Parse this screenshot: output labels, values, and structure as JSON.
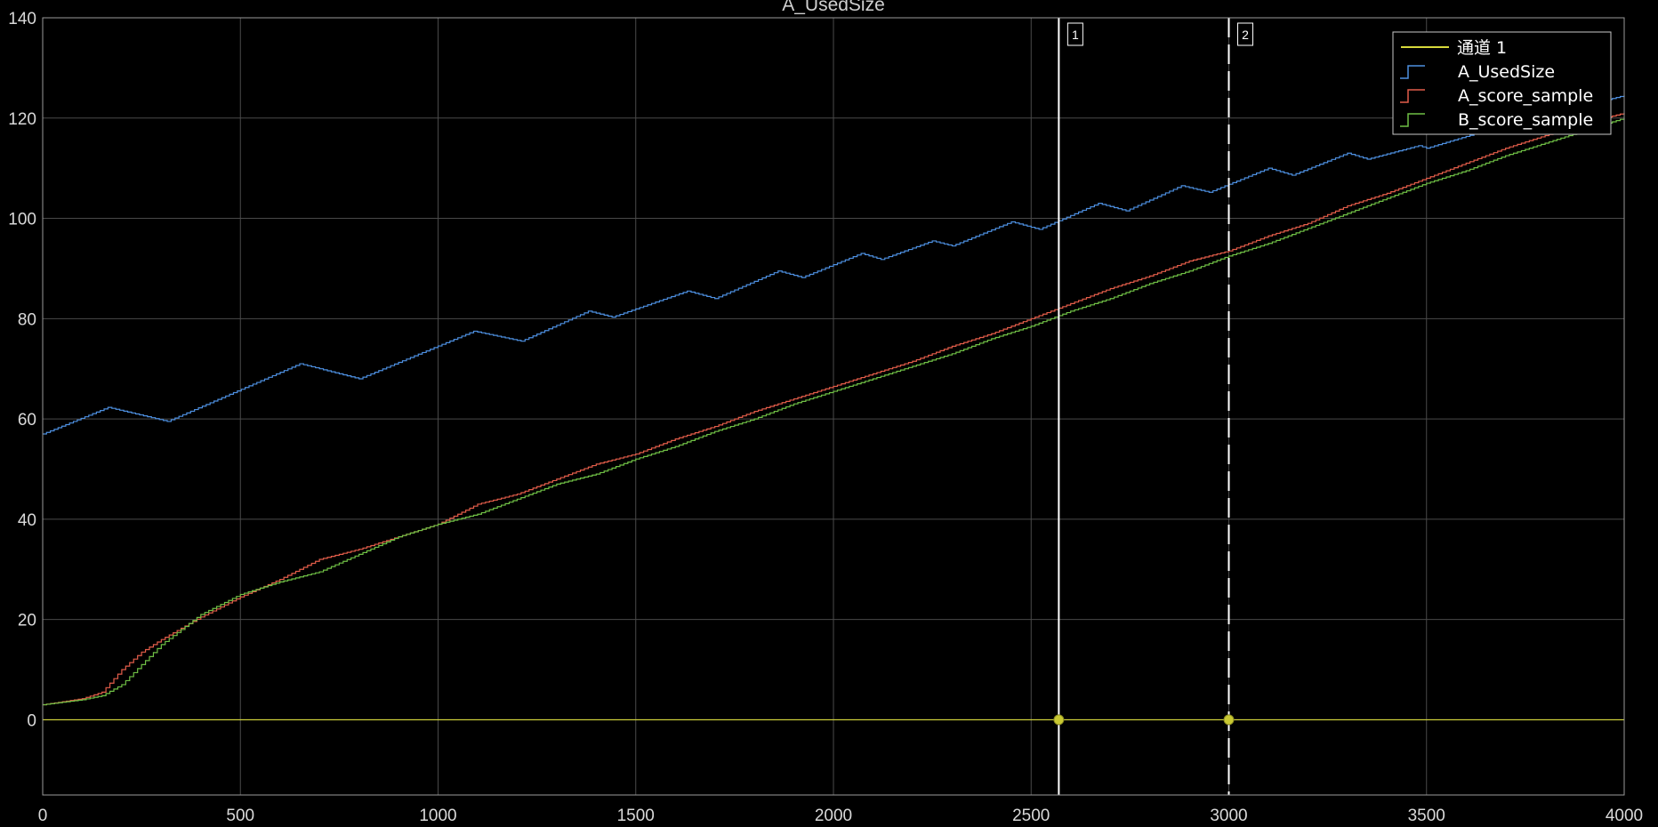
{
  "chart_data": {
    "type": "line",
    "title": "A_UsedSize",
    "xlabel": "",
    "ylabel": "",
    "xlim": [
      0,
      4000
    ],
    "ylim": [
      -15,
      140
    ],
    "x_ticks": [
      0,
      500,
      1000,
      1500,
      2000,
      2500,
      3000,
      3500,
      4000
    ],
    "y_ticks": [
      0,
      20,
      40,
      60,
      80,
      100,
      120,
      140
    ],
    "grid": true,
    "legend_position": "top-right",
    "background": "#000000",
    "series": [
      {
        "name": "通道 1",
        "color": "#d7d93b",
        "style": "line",
        "points": [
          [
            0,
            0
          ],
          [
            4000,
            0
          ]
        ]
      },
      {
        "name": "A_UsedSize",
        "color": "#4d8fe0",
        "style": "stairs",
        "points": [
          [
            0,
            57
          ],
          [
            165,
            62.3
          ],
          [
            315,
            59.5
          ],
          [
            650,
            71
          ],
          [
            800,
            68
          ],
          [
            1090,
            77.5
          ],
          [
            1210,
            75.5
          ],
          [
            1380,
            81.5
          ],
          [
            1440,
            80.3
          ],
          [
            1630,
            85.5
          ],
          [
            1700,
            84
          ],
          [
            1860,
            89.5
          ],
          [
            1920,
            88.2
          ],
          [
            2070,
            93
          ],
          [
            2120,
            91.8
          ],
          [
            2250,
            95.5
          ],
          [
            2300,
            94.5
          ],
          [
            2450,
            99.3
          ],
          [
            2520,
            97.8
          ],
          [
            2670,
            103
          ],
          [
            2740,
            101.5
          ],
          [
            2880,
            106.5
          ],
          [
            2950,
            105.2
          ],
          [
            3100,
            110
          ],
          [
            3160,
            108.6
          ],
          [
            3300,
            113
          ],
          [
            3350,
            111.8
          ],
          [
            3480,
            114.5
          ],
          [
            3500,
            114
          ],
          [
            3650,
            117.5
          ],
          [
            4000,
            124.5
          ]
        ]
      },
      {
        "name": "A_score_sample",
        "color": "#e35d4a",
        "style": "stairs",
        "points": [
          [
            0,
            3
          ],
          [
            100,
            4.2
          ],
          [
            150,
            5.5
          ],
          [
            200,
            10
          ],
          [
            250,
            13.5
          ],
          [
            300,
            16
          ],
          [
            400,
            20.5
          ],
          [
            500,
            24.5
          ],
          [
            600,
            28
          ],
          [
            700,
            32
          ],
          [
            800,
            34
          ],
          [
            900,
            36.5
          ],
          [
            1000,
            39
          ],
          [
            1100,
            43
          ],
          [
            1200,
            45
          ],
          [
            1300,
            48
          ],
          [
            1400,
            51
          ],
          [
            1500,
            53
          ],
          [
            1600,
            56
          ],
          [
            1700,
            58.5
          ],
          [
            1800,
            61.5
          ],
          [
            1900,
            64
          ],
          [
            2000,
            66.5
          ],
          [
            2100,
            69
          ],
          [
            2200,
            71.5
          ],
          [
            2300,
            74.5
          ],
          [
            2400,
            77
          ],
          [
            2500,
            80
          ],
          [
            2600,
            83
          ],
          [
            2700,
            86
          ],
          [
            2800,
            88.5
          ],
          [
            2900,
            91.5
          ],
          [
            3000,
            93.5
          ],
          [
            3100,
            96.5
          ],
          [
            3200,
            99
          ],
          [
            3300,
            102.5
          ],
          [
            3400,
            105
          ],
          [
            3500,
            108
          ],
          [
            3600,
            111
          ],
          [
            3700,
            114
          ],
          [
            3800,
            116.5
          ],
          [
            3900,
            119
          ],
          [
            4000,
            121
          ]
        ]
      },
      {
        "name": "B_score_sample",
        "color": "#6fbf45",
        "style": "stairs",
        "points": [
          [
            0,
            3
          ],
          [
            100,
            4
          ],
          [
            150,
            4.8
          ],
          [
            200,
            7
          ],
          [
            250,
            11
          ],
          [
            300,
            15
          ],
          [
            400,
            21
          ],
          [
            500,
            25
          ],
          [
            600,
            27.5
          ],
          [
            700,
            29.5
          ],
          [
            800,
            33
          ],
          [
            900,
            36.5
          ],
          [
            1000,
            39
          ],
          [
            1100,
            41
          ],
          [
            1200,
            44
          ],
          [
            1300,
            47
          ],
          [
            1400,
            49
          ],
          [
            1500,
            52
          ],
          [
            1600,
            54.5
          ],
          [
            1700,
            57.5
          ],
          [
            1800,
            60
          ],
          [
            1900,
            63
          ],
          [
            2000,
            65.5
          ],
          [
            2100,
            68
          ],
          [
            2200,
            70.5
          ],
          [
            2300,
            73
          ],
          [
            2400,
            76
          ],
          [
            2500,
            78.5
          ],
          [
            2600,
            81.5
          ],
          [
            2700,
            84
          ],
          [
            2800,
            87
          ],
          [
            2900,
            89.5
          ],
          [
            3000,
            92.5
          ],
          [
            3100,
            95
          ],
          [
            3200,
            98
          ],
          [
            3300,
            101
          ],
          [
            3400,
            104
          ],
          [
            3500,
            107
          ],
          [
            3600,
            109.5
          ],
          [
            3700,
            112.5
          ],
          [
            3800,
            115
          ],
          [
            3900,
            117.5
          ],
          [
            4000,
            120
          ]
        ]
      }
    ],
    "cursors": [
      {
        "label": "1",
        "x": 2570,
        "style": "solid",
        "color": "#ffffff"
      },
      {
        "label": "2",
        "x": 3000,
        "style": "dashed",
        "color": "#ffffff"
      }
    ],
    "cursor_marker_color": "#c8c832"
  }
}
